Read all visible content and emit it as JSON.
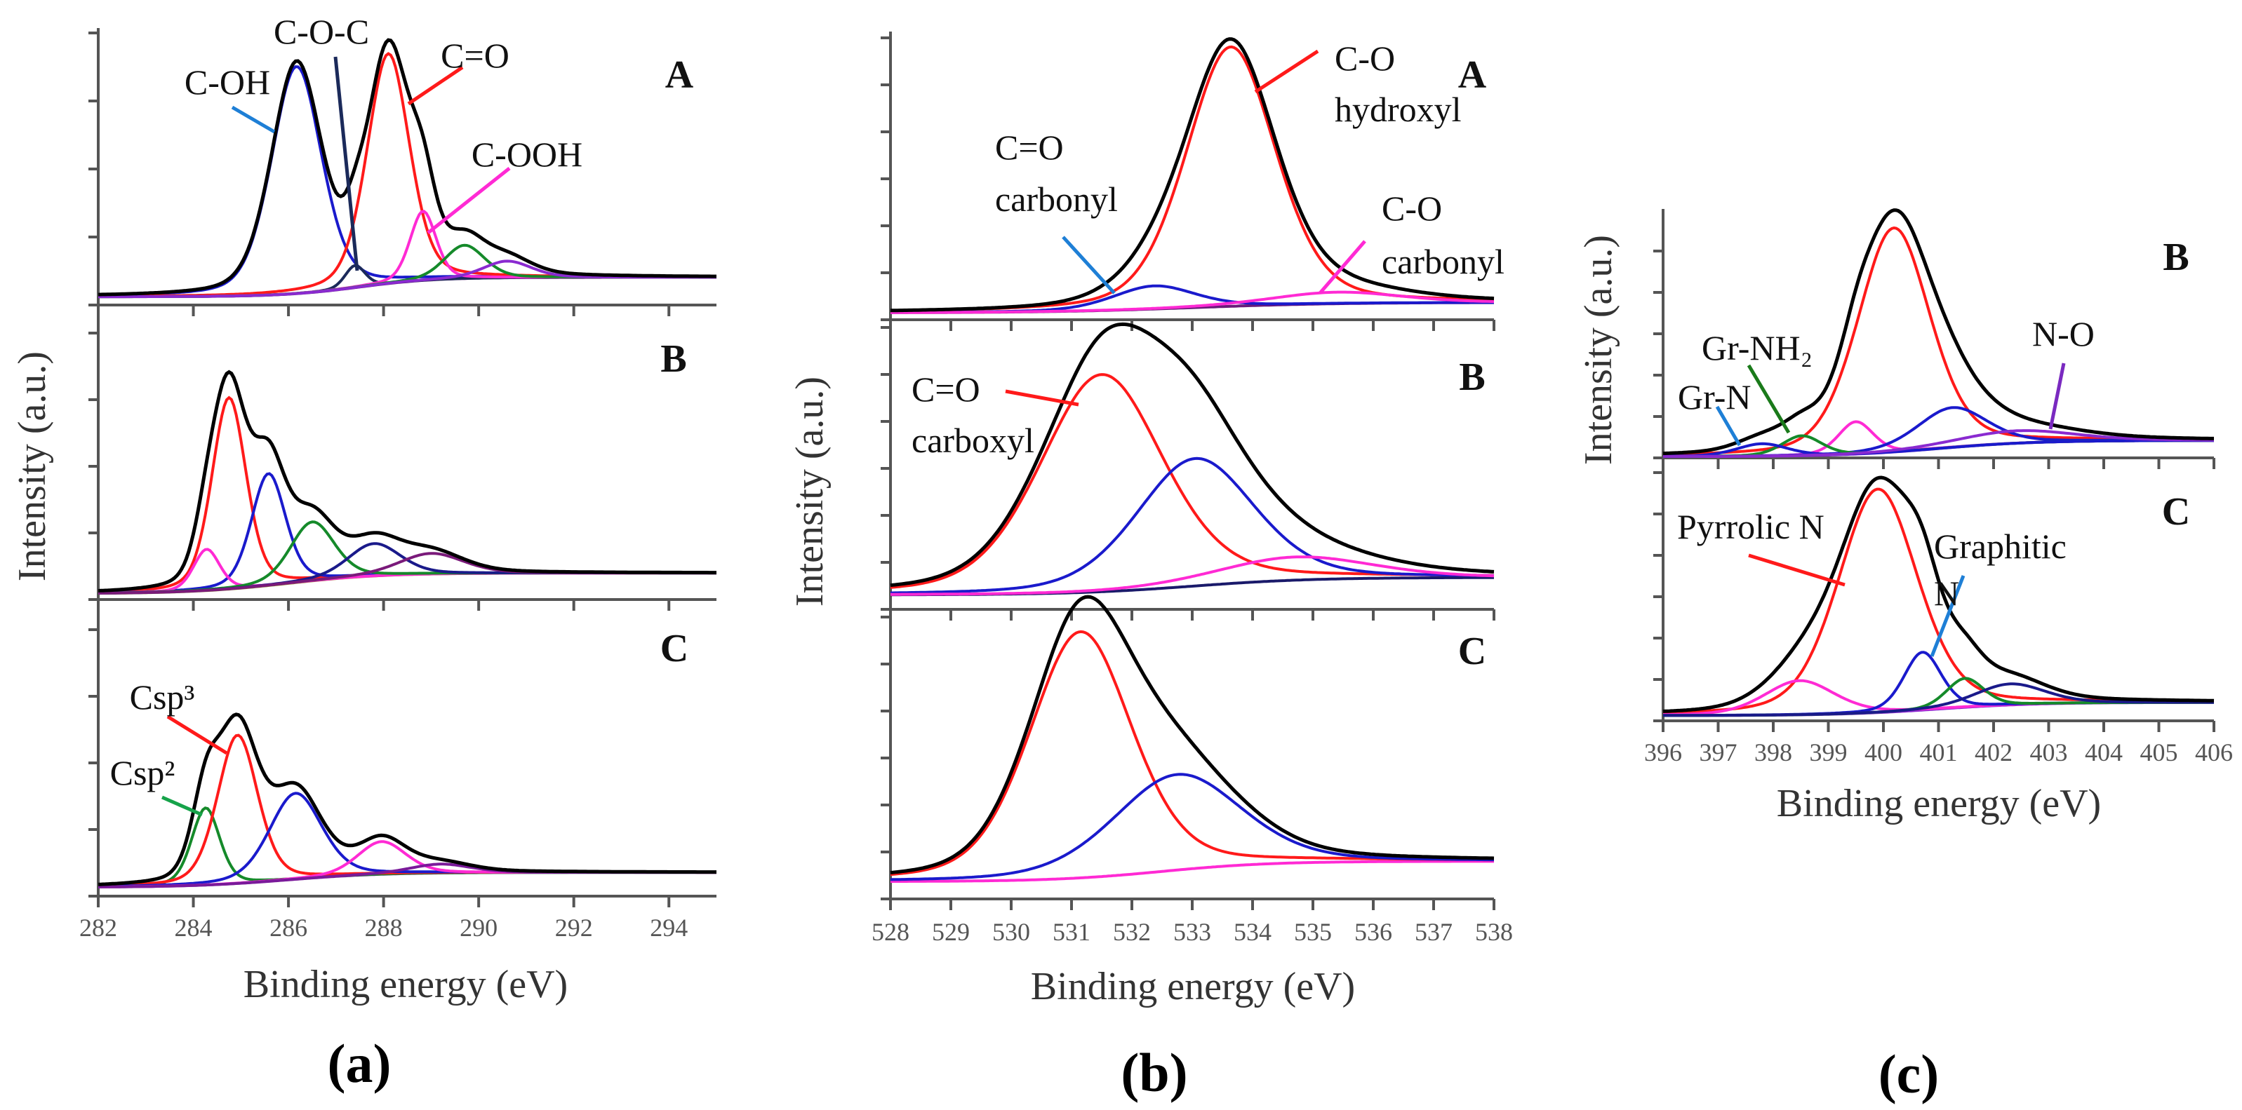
{
  "chart_data": [
    {
      "type": "line",
      "xlabel": "Binding energy (eV)",
      "ylabel": "Intensity (a.u.)",
      "caption": "(a)",
      "xlim": [
        282,
        295
      ],
      "xticks": [
        282,
        284,
        286,
        288,
        290,
        292,
        294
      ],
      "ylim": [
        0,
        100
      ],
      "axis_color": "#555555",
      "envelope_color": "#000000",
      "panels": [
        {
          "label": "A",
          "background": {
            "start": 3,
            "end": 10,
            "midpoint": 287.5,
            "width": 0.8,
            "color": "#6a1b7a"
          },
          "peaks": [
            {
              "center": 286.17,
              "height": 82,
              "fwhm": 1.25,
              "color": "#1a1acc",
              "label": "C-OH"
            },
            {
              "center": 287.4,
              "height": 8,
              "fwhm": 0.5,
              "color": "#1b2a5a",
              "label": "C-O-C"
            },
            {
              "center": 288.1,
              "height": 83,
              "fwhm": 1.05,
              "color": "#ff1a1a",
              "label": "C=O"
            },
            {
              "center": 288.83,
              "height": 25,
              "fwhm": 0.65,
              "color": "#ff2ad4",
              "label": "C-OOH"
            },
            {
              "center": 289.7,
              "height": 12,
              "fwhm": 1.0,
              "color": "#158a2a"
            },
            {
              "center": 290.6,
              "height": 6,
              "fwhm": 1.2,
              "color": "#8a2ad0"
            }
          ],
          "annotations": [
            {
              "lines": [
                "C-OH"
              ],
              "line_color": "#1e7fd6"
            },
            {
              "lines": [
                "C-O-C"
              ],
              "line_color": "#1b2a5a"
            },
            {
              "lines": [
                "C=O"
              ],
              "line_color": "#ff1a1a"
            },
            {
              "lines": [
                "C-OOH"
              ],
              "line_color": "#ff2ad4"
            }
          ]
        },
        {
          "label": "B",
          "background": {
            "start": 2,
            "end": 9,
            "midpoint": 286,
            "width": 1.0,
            "color": "#8a8a1a"
          },
          "peaks": [
            {
              "center": 284.75,
              "height": 65,
              "fwhm": 0.85,
              "color": "#ff1a1a"
            },
            {
              "center": 285.58,
              "height": 38,
              "fwhm": 0.85,
              "color": "#1a1acc"
            },
            {
              "center": 284.28,
              "height": 14,
              "fwhm": 0.65,
              "color": "#ff2ad4"
            },
            {
              "center": 286.5,
              "height": 20,
              "fwhm": 1.1,
              "color": "#158a2a"
            },
            {
              "center": 287.8,
              "height": 11,
              "fwhm": 1.3,
              "color": "#1a1a8a"
            },
            {
              "center": 289.0,
              "height": 7,
              "fwhm": 1.6,
              "color": "#7a1a7a"
            }
          ],
          "annotations": []
        },
        {
          "label": "C",
          "background": {
            "start": 3,
            "end": 8,
            "midpoint": 286,
            "width": 1.0,
            "color": "#7a1a9a"
          },
          "peaks": [
            {
              "center": 284.26,
              "height": 26,
              "fwhm": 0.7,
              "color": "#158a2a",
              "label": "Csp²"
            },
            {
              "center": 284.93,
              "height": 50,
              "fwhm": 1.0,
              "color": "#ff1a1a",
              "label": "Csp³"
            },
            {
              "center": 286.15,
              "height": 29,
              "fwhm": 1.3,
              "color": "#1a1acc"
            },
            {
              "center": 287.96,
              "height": 11,
              "fwhm": 1.2,
              "color": "#ff2ad4"
            },
            {
              "center": 289.2,
              "height": 3,
              "fwhm": 1.5,
              "color": "#7a1a9a"
            }
          ],
          "annotations": [
            {
              "lines": [
                "Csp³"
              ],
              "line_color": "#ff1a1a"
            },
            {
              "lines": [
                "Csp²"
              ],
              "line_color": "#16a34a"
            }
          ]
        }
      ]
    },
    {
      "type": "line",
      "xlabel": "Binding energy (eV)",
      "ylabel": "Intensity (a.u.)",
      "caption": "(b)",
      "xlim": [
        528,
        538
      ],
      "xticks": [
        528,
        529,
        530,
        531,
        532,
        533,
        534,
        535,
        536,
        537,
        538
      ],
      "ylim": [
        0,
        100
      ],
      "axis_color": "#555555",
      "envelope_color": "#000000",
      "panels": [
        {
          "label": "A",
          "background": {
            "start": 2.4,
            "end": 6,
            "midpoint": 533,
            "width": 1.2,
            "color": "#6a1b7a"
          },
          "peaks": [
            {
              "center": 533.64,
              "height": 90,
              "fwhm": 1.75,
              "color": "#ff1a1a",
              "label": "C-O hydroxyl"
            },
            {
              "center": 532.37,
              "height": 8,
              "fwhm": 1.6,
              "color": "#1a1acc",
              "label": "C=O carbonyl"
            },
            {
              "center": 535.4,
              "height": 4,
              "fwhm": 2.5,
              "color": "#ff2ad4",
              "label": "C-O carbonyl"
            }
          ],
          "annotations": [
            {
              "lines": [
                "C-O",
                "hydroxyl"
              ],
              "line_color": "#ff1a1a"
            },
            {
              "lines": [
                "C=O",
                "carbonyl"
              ],
              "line_color": "#1e7fd6"
            },
            {
              "lines": [
                "C-O",
                "carbonyl"
              ],
              "line_color": "#ff2ad4"
            }
          ]
        },
        {
          "label": "B",
          "background": {
            "start": 5,
            "end": 11,
            "midpoint": 533,
            "width": 1.0,
            "color": "#1a1a6a"
          },
          "peaks": [
            {
              "center": 531.5,
              "height": 75,
              "fwhm": 2.4,
              "color": "#ff1a1a",
              "label": "C=O carboxyl"
            },
            {
              "center": 533.05,
              "height": 44,
              "fwhm": 2.3,
              "color": "#1a1acc"
            },
            {
              "center": 534.7,
              "height": 8,
              "fwhm": 3.0,
              "color": "#ff2ad4"
            }
          ],
          "annotations": [
            {
              "lines": [
                "C=O",
                "carboxyl"
              ],
              "line_color": "#ff1a1a"
            }
          ]
        },
        {
          "label": "C",
          "background": {
            "start": 6,
            "end": 13,
            "midpoint": 532.5,
            "width": 0.9,
            "color": "#ff2ad4"
          },
          "peaks": [
            {
              "center": 531.15,
              "height": 85,
              "fwhm": 2.0,
              "color": "#ff1a1a"
            },
            {
              "center": 532.75,
              "height": 33,
              "fwhm": 2.5,
              "color": "#1a1acc"
            }
          ],
          "annotations": []
        }
      ]
    },
    {
      "type": "line",
      "xlabel": "Binding energy (eV)",
      "ylabel": "Intensity (a.u.)",
      "caption": "(c)",
      "xlim": [
        396,
        406
      ],
      "xticks": [
        396,
        397,
        398,
        399,
        400,
        401,
        402,
        403,
        404,
        405,
        406
      ],
      "ylim": [
        0,
        100
      ],
      "axis_color": "#555555",
      "envelope_color": "#000000",
      "panels": [
        {
          "label": "B",
          "background": {
            "start": 0.5,
            "end": 7,
            "midpoint": 401,
            "width": 0.9,
            "color": "#8a2ad0"
          },
          "peaks": [
            {
              "center": 400.19,
              "height": 90,
              "fwhm": 1.55,
              "color": "#ff1a1a"
            },
            {
              "center": 399.5,
              "height": 13,
              "fwhm": 0.75,
              "color": "#ff2ad4"
            },
            {
              "center": 401.25,
              "height": 16,
              "fwhm": 1.5,
              "color": "#1a1acc"
            },
            {
              "center": 398.52,
              "height": 8,
              "fwhm": 0.85,
              "color": "#158a2a",
              "label": "Gr-NH₂"
            },
            {
              "center": 397.8,
              "height": 5,
              "fwhm": 1.1,
              "color": "#1a1acc",
              "label": "Gr-N"
            },
            {
              "center": 402.4,
              "height": 5,
              "fwhm": 2.5,
              "color": "#8a2ad0",
              "label": "N-O"
            }
          ],
          "annotations": [
            {
              "lines": [
                "Gr-NH₂"
              ],
              "line_color": "#1a7a1a"
            },
            {
              "lines": [
                "Gr-N"
              ],
              "line_color": "#1e7fd6"
            },
            {
              "lines": [
                "N-O"
              ],
              "line_color": "#7a2ac0"
            }
          ]
        },
        {
          "label": "C",
          "background": {
            "start": 2,
            "end": 7,
            "midpoint": 401,
            "width": 0.9,
            "color": "#8a2ad0"
          },
          "peaks": [
            {
              "center": 399.9,
              "height": 85,
              "fwhm": 1.7,
              "color": "#ff1a1a",
              "label": "Pyrrolic N"
            },
            {
              "center": 398.48,
              "height": 13,
              "fwhm": 1.5,
              "color": "#ff2ad4"
            },
            {
              "center": 400.71,
              "height": 22,
              "fwhm": 0.8,
              "color": "#1a1acc",
              "label": "Graphitic N"
            },
            {
              "center": 401.48,
              "height": 11,
              "fwhm": 0.8,
              "color": "#158a2a"
            },
            {
              "center": 402.3,
              "height": 8,
              "fwhm": 1.5,
              "color": "#1a1a8a"
            }
          ],
          "annotations": [
            {
              "lines": [
                "Pyrrolic N"
              ],
              "line_color": "#ff1a1a"
            },
            {
              "lines": [
                "Graphitic",
                "N"
              ],
              "line_color": "#1e7fd6"
            }
          ]
        }
      ]
    }
  ]
}
